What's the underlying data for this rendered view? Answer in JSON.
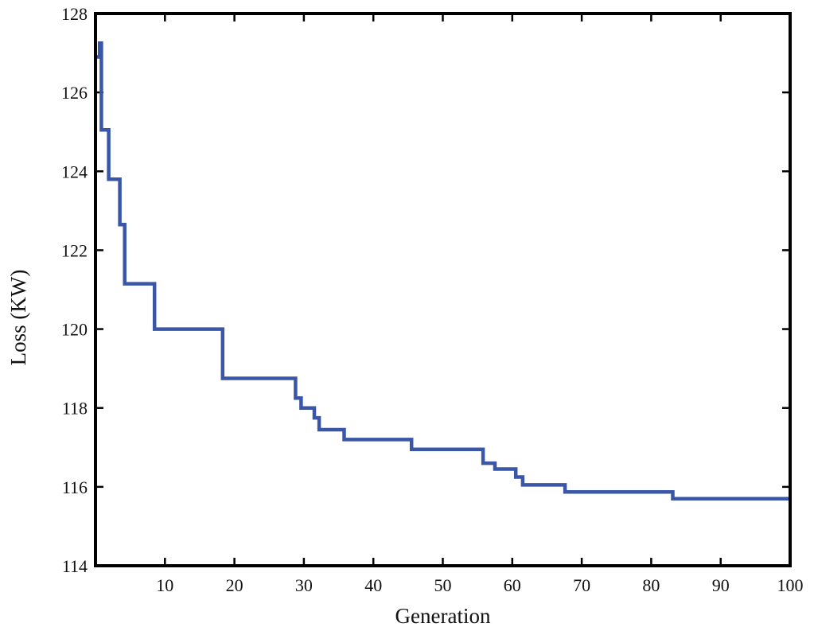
{
  "chart_data": {
    "type": "line",
    "title": "",
    "xlabel": "Generation",
    "ylabel": "Loss (KW)",
    "xlim": [
      0,
      100
    ],
    "ylim": [
      114,
      128
    ],
    "xticks": [
      10,
      20,
      30,
      40,
      50,
      60,
      70,
      80,
      90,
      100
    ],
    "xtick_labels": [
      "10",
      "20",
      "30",
      "40",
      "50",
      "60",
      "70",
      "80",
      "90",
      "100"
    ],
    "yticks": [
      114,
      116,
      118,
      120,
      122,
      124,
      126,
      128
    ],
    "ytick_labels": [
      "114",
      "116",
      "118",
      "120",
      "122",
      "124",
      "126",
      "128"
    ],
    "grid": false,
    "legend": "none",
    "series": [
      {
        "color": "#3a56a6",
        "step": true,
        "points": [
          [
            0.2,
            126.9
          ],
          [
            0.6,
            127.25
          ],
          [
            0.85,
            125.05
          ],
          [
            1.9,
            123.8
          ],
          [
            3.5,
            122.65
          ],
          [
            4.2,
            121.15
          ],
          [
            8.5,
            120.0
          ],
          [
            18.3,
            118.75
          ],
          [
            28.8,
            118.25
          ],
          [
            29.6,
            118.0
          ],
          [
            31.5,
            117.75
          ],
          [
            32.2,
            117.45
          ],
          [
            35.8,
            117.2
          ],
          [
            45.5,
            116.95
          ],
          [
            55.8,
            116.6
          ],
          [
            57.5,
            116.45
          ],
          [
            60.5,
            116.25
          ],
          [
            61.5,
            116.05
          ],
          [
            67.6,
            115.87
          ],
          [
            83.1,
            115.7
          ],
          [
            100,
            115.7
          ]
        ]
      }
    ]
  }
}
